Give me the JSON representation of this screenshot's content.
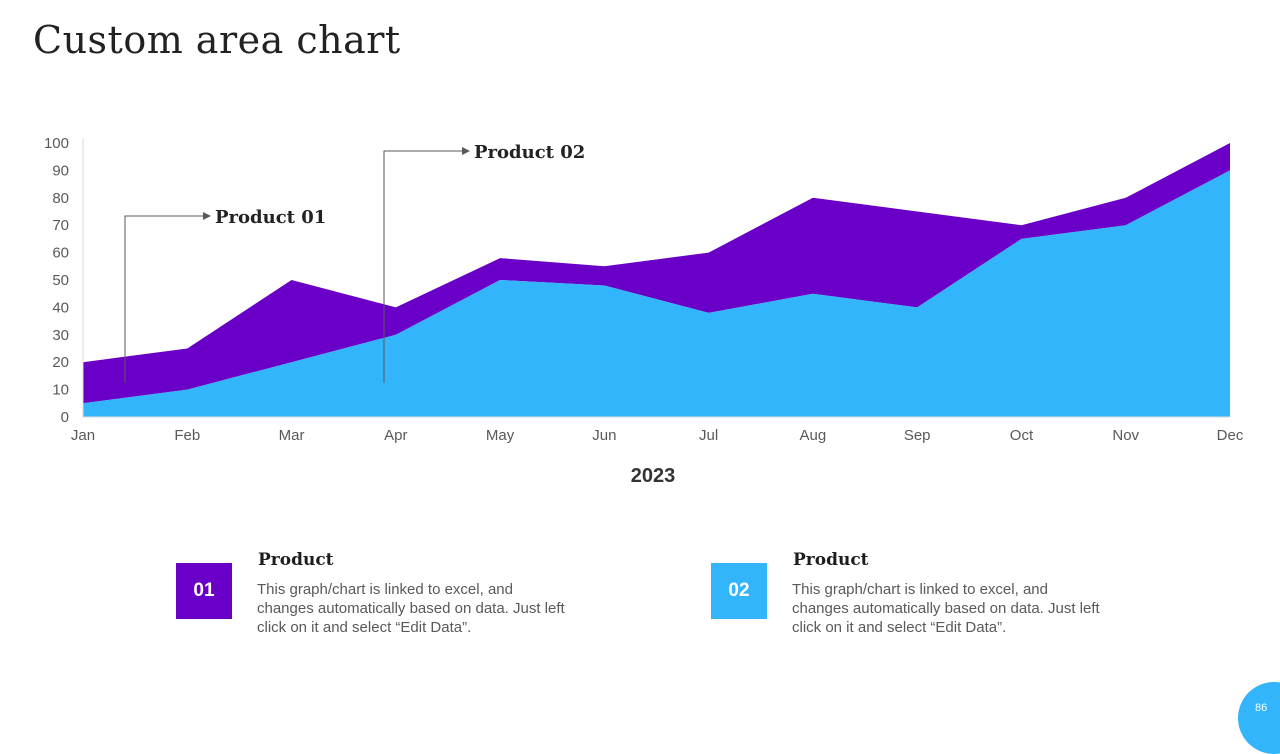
{
  "page": {
    "title": "Custom area chart",
    "page_number": "86"
  },
  "colors": {
    "product01": "#6a00c8",
    "product02": "#33b5fb",
    "axis": "#d9d9d9",
    "text": "#595959"
  },
  "chart_data": {
    "type": "area",
    "stacked": true,
    "categories": [
      "Jan",
      "Feb",
      "Mar",
      "Apr",
      "May",
      "Jun",
      "Jul",
      "Aug",
      "Sep",
      "Oct",
      "Nov",
      "Dec"
    ],
    "series": [
      {
        "name": "Product 02",
        "values": [
          5,
          10,
          20,
          30,
          50,
          48,
          38,
          45,
          40,
          65,
          70,
          90
        ]
      },
      {
        "name": "Product 01",
        "values": [
          15,
          15,
          30,
          10,
          8,
          7,
          22,
          35,
          35,
          5,
          10,
          10
        ]
      }
    ],
    "ylim": [
      0,
      100
    ],
    "yticks": [
      0,
      10,
      20,
      30,
      40,
      50,
      60,
      70,
      80,
      90,
      100
    ],
    "xlabel": "2023",
    "annotations": [
      {
        "label": "Product 01",
        "category": "Jan"
      },
      {
        "label": "Product 02",
        "category": "Apr"
      }
    ]
  },
  "legend": [
    {
      "number": "01",
      "title": "Product",
      "text": "This graph/chart  is linked to excel, and changes automatically based on data. Just left click on it and select “Edit Data”."
    },
    {
      "number": "02",
      "title": "Product",
      "text": "This graph/chart  is linked to excel, and changes automatically based on data. Just left click on it and select “Edit Data”."
    }
  ]
}
